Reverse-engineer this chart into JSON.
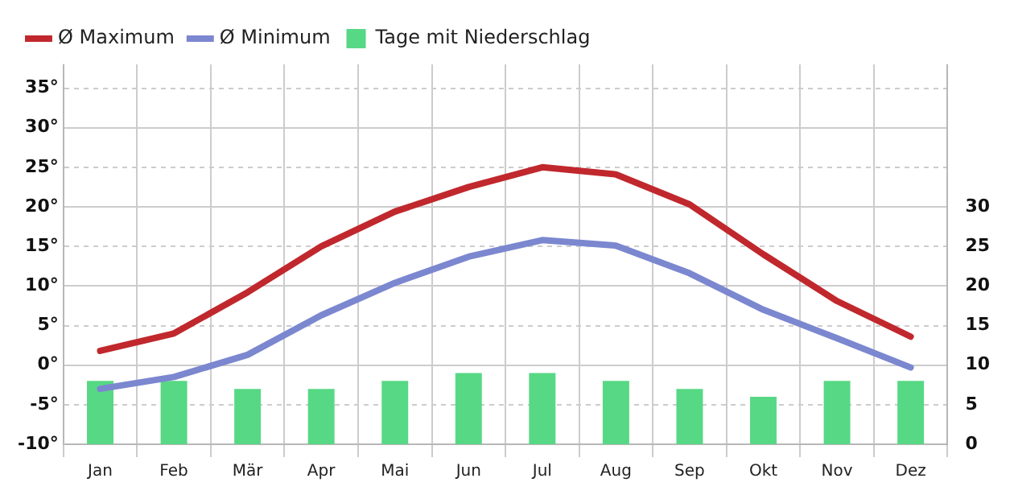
{
  "chart_data": {
    "type": "line",
    "categories": [
      "Jan",
      "Feb",
      "Mär",
      "Apr",
      "Mai",
      "Jun",
      "Jul",
      "Aug",
      "Sep",
      "Okt",
      "Nov",
      "Dez"
    ],
    "series": [
      {
        "name": "Ø Maximum",
        "color": "#c0282d",
        "values": [
          1.8,
          4,
          9.2,
          15,
          19.4,
          22.5,
          25,
          24.1,
          20.3,
          14,
          8.1,
          3.6
        ]
      },
      {
        "name": "Ø Minimum",
        "color": "#7b87cf",
        "values": [
          -3,
          -1.5,
          1.3,
          6.3,
          10.4,
          13.7,
          15.8,
          15.1,
          11.6,
          7,
          3.4,
          -0.3
        ]
      },
      {
        "name": "Tage mit Niederschlag",
        "type": "bar",
        "axis": "y2",
        "color": "#57d884",
        "values": [
          8,
          8,
          7,
          7,
          8,
          9,
          9,
          8,
          7,
          6,
          8,
          8
        ]
      }
    ],
    "ylim": [
      -10,
      38
    ],
    "yticks": [
      {
        "value": -10,
        "label": "-10°"
      },
      {
        "value": -5,
        "label": "-5°"
      },
      {
        "value": 0,
        "label": "0°"
      },
      {
        "value": 5,
        "label": "5°"
      },
      {
        "value": 10,
        "label": "10°"
      },
      {
        "value": 15,
        "label": "15°"
      },
      {
        "value": 20,
        "label": "20°"
      },
      {
        "value": 25,
        "label": "25°"
      },
      {
        "value": 30,
        "label": "30°"
      },
      {
        "value": 35,
        "label": "35°"
      }
    ],
    "y2lim": [
      0,
      48
    ],
    "y2ticks": [
      0,
      5,
      10,
      15,
      20,
      25,
      30
    ],
    "grid": true,
    "legend": "top",
    "marker": "none",
    "line_style": "solid"
  }
}
